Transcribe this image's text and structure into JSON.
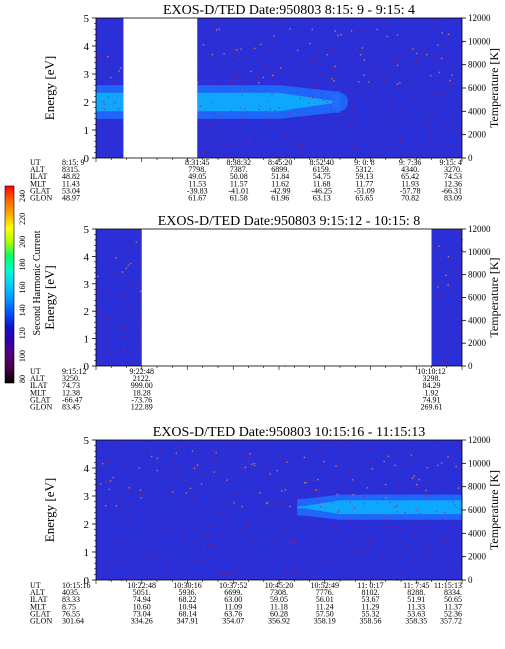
{
  "colors": {
    "background": "#2b2fd8",
    "band_outer": "#1f6fff",
    "band_inner": "#0ea8ff",
    "speckle": "#b01b52",
    "gap": "#ffffff"
  },
  "colorbar": {
    "label": "Second Harmonic Current",
    "range": [
      80,
      240
    ],
    "ticks": [
      "240",
      "220",
      "200",
      "180",
      "160",
      "140",
      "120",
      "100",
      "80"
    ],
    "colors": [
      "#ff0000",
      "#ff6600",
      "#ffaa00",
      "#ffff00",
      "#aaff00",
      "#00ff66",
      "#00ffcc",
      "#00ccff",
      "#0099ff",
      "#0055ff",
      "#1111cc",
      "#3300aa",
      "#550077",
      "#440044",
      "#000000"
    ]
  },
  "chart_data": [
    {
      "type": "heatmap",
      "title": "EXOS-D/TED   Date:950803  8:15: 9 - 9:15: 4",
      "ylabel": "Energy [eV]",
      "ylabel_right": "Temperature [K]",
      "ylim": [
        0,
        5
      ],
      "ylim_right": [
        0,
        12000
      ],
      "yticks": [
        "5",
        "4",
        "3",
        "2",
        "1",
        "0"
      ],
      "yticks_right": [
        "12000",
        "10000",
        "8000",
        "6000",
        "4000",
        "2000",
        "0"
      ],
      "x_range": [
        0,
        60
      ],
      "data_gaps": [
        [
          4.5,
          16.6
        ]
      ],
      "band": {
        "from": 0,
        "to": 40,
        "center_eV": 2.0,
        "halfwidth_eV": 0.6,
        "fade_start": 30
      },
      "ephemeris_labels": [
        "UT",
        "ALT",
        "ILAT",
        "MLT",
        "GLAT",
        "GLON"
      ],
      "ephemeris": [
        {
          "x": 0,
          "values": [
            "8:15: 9",
            "8315.",
            "48.82",
            "11.43",
            "53.04",
            "48.97"
          ]
        },
        {
          "x": 16.6,
          "values": [
            "8:31:45",
            "7798.",
            "49.05",
            "11.53",
            "-39.83",
            "61.67"
          ]
        },
        {
          "x": 23.4,
          "values": [
            "8:38:32",
            "7387.",
            "50.08",
            "11.57",
            "-41.01",
            "61.58"
          ]
        },
        {
          "x": 30.2,
          "values": [
            "8:45:20",
            "6899.",
            "51.84",
            "11.62",
            "-42.99",
            "61.96"
          ]
        },
        {
          "x": 37.0,
          "values": [
            "8:52:40",
            "6159.",
            "54.75",
            "11.68",
            "-46.25",
            "63.13"
          ]
        },
        {
          "x": 44.0,
          "values": [
            "9: 0: 8",
            "5312.",
            "59.13",
            "11.77",
            "-51.09",
            "65.65"
          ]
        },
        {
          "x": 51.5,
          "values": [
            "9: 7:36",
            "4340.",
            "65.42",
            "11.93",
            "-57.78",
            "70.82"
          ]
        },
        {
          "x": 60,
          "values": [
            "9:15: 4",
            "3270.",
            "74.53",
            "12.36",
            "-66.31",
            "83.09"
          ]
        }
      ]
    },
    {
      "type": "heatmap",
      "title": "EXOS-D/TED   Date:950803  9:15:12 - 10:15: 8",
      "ylabel": "Energy [eV]",
      "ylabel_right": "Temperature [K]",
      "ylim": [
        0,
        5
      ],
      "ylim_right": [
        0,
        12000
      ],
      "yticks": [
        "5",
        "4",
        "3",
        "2",
        "1",
        "0"
      ],
      "yticks_right": [
        "12000",
        "10000",
        "8000",
        "6000",
        "4000",
        "2000",
        "0"
      ],
      "x_range": [
        0,
        60
      ],
      "data_gaps": [
        [
          7.5,
          55.0
        ]
      ],
      "band": null,
      "ephemeris_labels": [
        "UT",
        "ALT",
        "ILAT",
        "MLT",
        "GLAT",
        "GLON"
      ],
      "ephemeris": [
        {
          "x": 0,
          "values": [
            "9:15:12",
            "3250.",
            "74.73",
            "12.38",
            "-66.47",
            "83.45"
          ]
        },
        {
          "x": 7.5,
          "values": [
            "9:22:48",
            "2122.",
            "999.00",
            "18.28",
            "-73.76",
            "122.89"
          ]
        },
        {
          "x": 55.0,
          "values": [
            "10:10:12",
            "3298.",
            "84.29",
            "1.92",
            "74.91",
            "269.61"
          ]
        }
      ]
    },
    {
      "type": "heatmap",
      "title": "EXOS-D/TED   Date:950803  10:15:16 - 11:15:13",
      "ylabel": "Energy [eV]",
      "ylabel_right": "Temperature [K]",
      "ylim": [
        0,
        5
      ],
      "ylim_right": [
        0,
        12000
      ],
      "yticks": [
        "5",
        "4",
        "3",
        "2",
        "1",
        "0"
      ],
      "yticks_right": [
        "12000",
        "10000",
        "8000",
        "6000",
        "4000",
        "2000",
        "0"
      ],
      "x_range": [
        0,
        60
      ],
      "data_gaps": [],
      "band": {
        "from": 33,
        "to": 60,
        "center_eV": 2.6,
        "halfwidth_eV": 0.45,
        "fade_start": 40,
        "fade_in": true
      },
      "ephemeris_labels": [
        "UT",
        "ALT",
        "ILAT",
        "MLT",
        "GLAT",
        "GLON"
      ],
      "ephemeris": [
        {
          "x": 0,
          "values": [
            "10:15:16",
            "4035.",
            "83.33",
            "8.75",
            "76.55",
            "301.64"
          ]
        },
        {
          "x": 7.5,
          "values": [
            "10:22:48",
            "5051.",
            "74.94",
            "10.60",
            "73.04",
            "334.26"
          ]
        },
        {
          "x": 15.0,
          "values": [
            "10:30:16",
            "5936.",
            "68.22",
            "10.94",
            "68.14",
            "347.91"
          ]
        },
        {
          "x": 22.5,
          "values": [
            "10:37:52",
            "6699.",
            "63.00",
            "11.09",
            "63.76",
            "354.07"
          ]
        },
        {
          "x": 30.0,
          "values": [
            "10:45:20",
            "7308.",
            "59.05",
            "11.18",
            "60.28",
            "356.92"
          ]
        },
        {
          "x": 37.5,
          "values": [
            "10:52:49",
            "7776.",
            "56.01",
            "11.24",
            "57.50",
            "358.19"
          ]
        },
        {
          "x": 45.0,
          "values": [
            "11: 0:17",
            "8102.",
            "53.67",
            "11.29",
            "55.32",
            "358.56"
          ]
        },
        {
          "x": 52.5,
          "values": [
            "11: 7:45",
            "8288.",
            "51.91",
            "11.33",
            "53.63",
            "358.35"
          ]
        },
        {
          "x": 60,
          "values": [
            "11:15:13",
            "8334.",
            "50.65",
            "11.37",
            "52.36",
            "357.72"
          ]
        }
      ]
    }
  ]
}
